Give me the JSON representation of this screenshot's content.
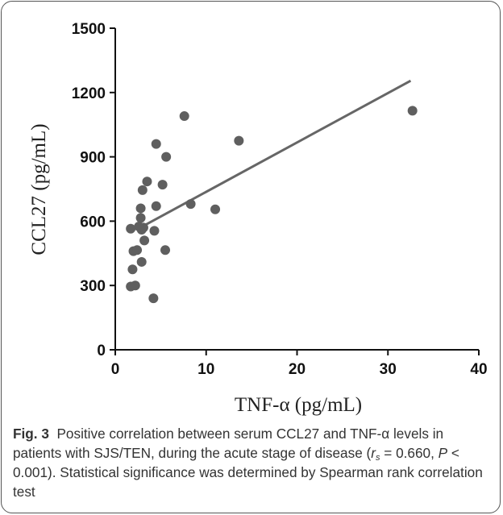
{
  "chart_data": {
    "type": "scatter",
    "xlabel": "TNF-α  (pg/mL)",
    "ylabel": "CCL27 (pg/mL)",
    "xlim": [
      0,
      40
    ],
    "ylim": [
      0,
      1500
    ],
    "xticks": [
      "0",
      "10",
      "20",
      "30",
      "40"
    ],
    "yticks": [
      "0",
      "300",
      "600",
      "900",
      "1200",
      "1500"
    ],
    "grid": false,
    "marker_color": "#5f5f5f",
    "line_color": "#666666",
    "points": [
      {
        "x": 1.7,
        "y": 295
      },
      {
        "x": 2.2,
        "y": 300
      },
      {
        "x": 1.9,
        "y": 375
      },
      {
        "x": 2.0,
        "y": 460
      },
      {
        "x": 2.4,
        "y": 465
      },
      {
        "x": 1.7,
        "y": 565
      },
      {
        "x": 2.9,
        "y": 410
      },
      {
        "x": 3.2,
        "y": 510
      },
      {
        "x": 2.9,
        "y": 560
      },
      {
        "x": 3.1,
        "y": 570
      },
      {
        "x": 2.6,
        "y": 575
      },
      {
        "x": 2.8,
        "y": 615
      },
      {
        "x": 2.8,
        "y": 660
      },
      {
        "x": 3.0,
        "y": 745
      },
      {
        "x": 3.5,
        "y": 785
      },
      {
        "x": 4.2,
        "y": 240
      },
      {
        "x": 4.3,
        "y": 555
      },
      {
        "x": 4.5,
        "y": 670
      },
      {
        "x": 4.5,
        "y": 960
      },
      {
        "x": 5.2,
        "y": 770
      },
      {
        "x": 5.5,
        "y": 465
      },
      {
        "x": 5.6,
        "y": 900
      },
      {
        "x": 7.6,
        "y": 1090
      },
      {
        "x": 8.3,
        "y": 680
      },
      {
        "x": 11.0,
        "y": 655
      },
      {
        "x": 13.6,
        "y": 975
      },
      {
        "x": 32.7,
        "y": 1115
      }
    ],
    "regression_line": {
      "x1": 3.2,
      "y1": 580,
      "x2": 32.5,
      "y2": 1255
    }
  },
  "caption": {
    "label": "Fig. 3",
    "text_before_rs": "Positive correlation between serum CCL27 and TNF-α levels in patients with SJS/TEN, during the acute stage of disease (",
    "rs_letter": "r",
    "rs_sub": "s",
    "rs_value": " = 0.660, ",
    "p_letter": "P",
    "text_after_p": " < 0.001). Statistical significance was determined by Spearman rank correlation test"
  }
}
